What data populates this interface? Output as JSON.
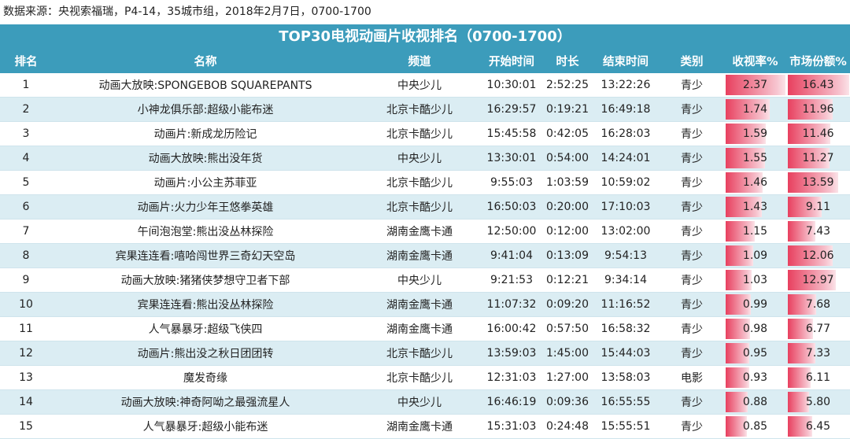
{
  "caption": "数据来源：央视索福瑞，P4-14，35城市组，2018年2月7日，0700-1700",
  "title": "TOP30电视动画片收视排名（0700-1700）",
  "columns": [
    "排名",
    "名称",
    "频道",
    "开始时间",
    "时长",
    "结束时间",
    "类别",
    "收视率%",
    "市场份额%"
  ],
  "bar_color": "#e8405f",
  "header_color": "#3c9cbb",
  "rows": [
    [
      "1",
      "动画大放映:SPONGEBOB SQUAREPANTS",
      "中央少儿",
      "10:30:01",
      "2:52:25",
      "13:22:26",
      "青少",
      "2.37",
      "16.43"
    ],
    [
      "2",
      "小神龙俱乐部:超级小能布迷",
      "北京卡酷少儿",
      "16:29:57",
      "0:19:21",
      "16:49:18",
      "青少",
      "1.74",
      "11.96"
    ],
    [
      "3",
      "动画片:新成龙历险记",
      "北京卡酷少儿",
      "15:45:58",
      "0:42:05",
      "16:28:03",
      "青少",
      "1.59",
      "11.46"
    ],
    [
      "4",
      "动画大放映:熊出没年货",
      "中央少儿",
      "13:30:01",
      "0:54:00",
      "14:24:01",
      "青少",
      "1.55",
      "11.27"
    ],
    [
      "5",
      "动画片:小公主苏菲亚",
      "北京卡酷少儿",
      "9:55:03",
      "1:03:59",
      "10:59:02",
      "青少",
      "1.46",
      "13.59"
    ],
    [
      "6",
      "动画片:火力少年王悠拳英雄",
      "北京卡酷少儿",
      "16:50:03",
      "0:20:00",
      "17:10:03",
      "青少",
      "1.43",
      "9.11"
    ],
    [
      "7",
      "午间泡泡堂:熊出没丛林探险",
      "湖南金鹰卡通",
      "12:50:00",
      "0:12:00",
      "13:02:00",
      "青少",
      "1.15",
      "7.43"
    ],
    [
      "8",
      "宾果连连看:嘻哈闯世界三奇幻天空岛",
      "湖南金鹰卡通",
      "9:41:04",
      "0:13:09",
      "9:54:13",
      "青少",
      "1.09",
      "12.06"
    ],
    [
      "9",
      "动画大放映:猪猪侠梦想守卫者下部",
      "中央少儿",
      "9:21:53",
      "0:12:21",
      "9:34:14",
      "青少",
      "1.03",
      "12.97"
    ],
    [
      "10",
      "宾果连连看:熊出没丛林探险",
      "湖南金鹰卡通",
      "11:07:32",
      "0:09:20",
      "11:16:52",
      "青少",
      "0.99",
      "7.68"
    ],
    [
      "11",
      "人气暴暴牙:超级飞侠四",
      "湖南金鹰卡通",
      "16:00:42",
      "0:57:50",
      "16:58:32",
      "青少",
      "0.98",
      "6.77"
    ],
    [
      "12",
      "动画片:熊出没之秋日团团转",
      "北京卡酷少儿",
      "13:59:03",
      "1:45:00",
      "15:44:03",
      "青少",
      "0.95",
      "7.33"
    ],
    [
      "13",
      "魔发奇缘",
      "北京卡酷少儿",
      "12:31:03",
      "1:27:00",
      "13:58:03",
      "电影",
      "0.93",
      "6.11"
    ],
    [
      "14",
      "动画大放映:神奇阿呦之最强流星人",
      "中央少儿",
      "16:46:19",
      "0:09:36",
      "16:55:55",
      "青少",
      "0.88",
      "5.80"
    ],
    [
      "15",
      "人气暴暴牙:超级小能布迷",
      "湖南金鹰卡通",
      "15:31:03",
      "0:24:48",
      "15:55:51",
      "青少",
      "0.85",
      "6.45"
    ]
  ]
}
